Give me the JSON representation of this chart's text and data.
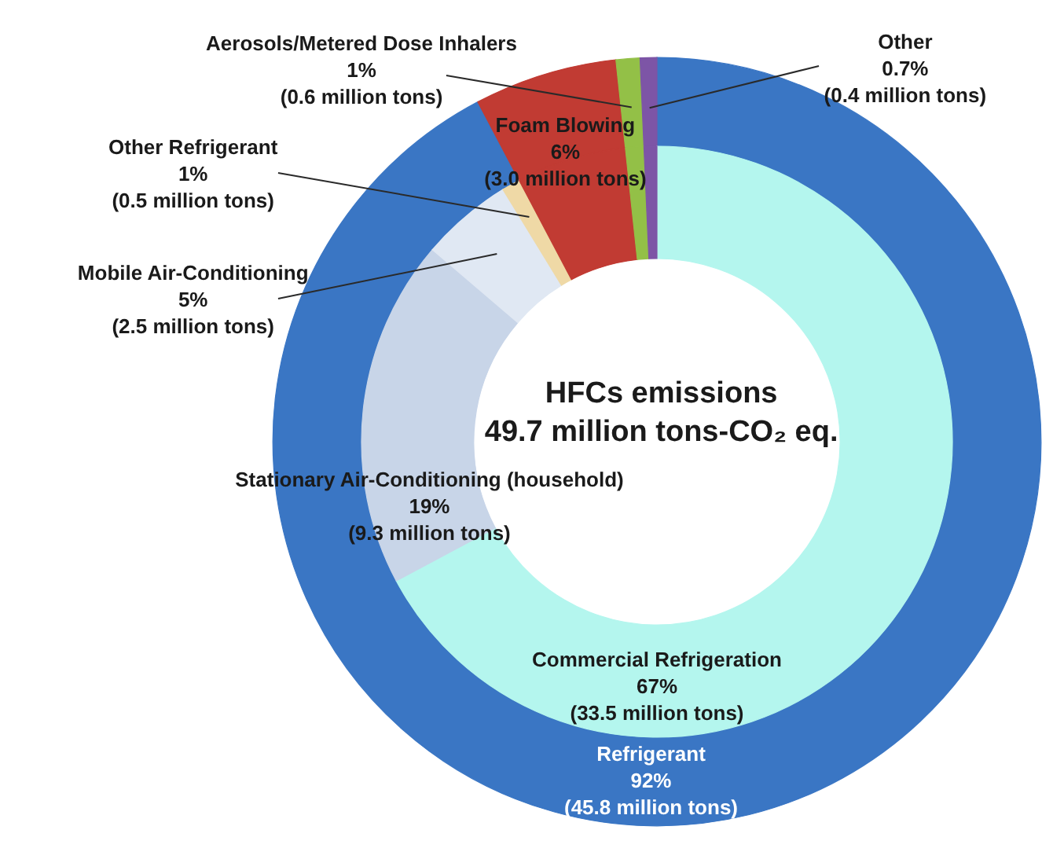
{
  "chart_data": {
    "type": "donut",
    "title": "HFCs emissions",
    "subtitle": "49.7 million tons-CO₂ eq.",
    "series": [
      {
        "values": [
          92,
          6,
          1,
          0.7
        ],
        "colors": [
          "#3a76c4",
          "#c13b33",
          "#93c047",
          "#7d55a6"
        ],
        "value_labels": [
          "Refrigerant\n92%\n(45.8 million tons)",
          "Foam Blowing\n6%\n(3.0 million tons)",
          "Aerosols/Metered Dose Inhalers\n1%\n(0.6 million tons)",
          "Other\n0.7%\n(0.4 million tons)"
        ]
      },
      {
        "values": [
          67,
          19,
          5,
          1,
          6,
          1,
          0.7
        ],
        "colors": [
          "#b4f6ee",
          "#c8d5e8",
          "#e0e8f3",
          "#efd9a6",
          "#c13b33",
          "#93c047",
          "#7d55a6"
        ],
        "value_labels": [
          "Commercial Refrigeration\n67%\n(33.5 million tons)",
          "Stationary Air-Conditioning (household)\n19%\n(9.3 million tons)",
          "Mobile Air-Conditioning\n5%\n(2.5 million tons)",
          "Other Refrigerant\n1%\n(0.5 million tons)",
          null,
          null,
          null
        ]
      }
    ]
  }
}
